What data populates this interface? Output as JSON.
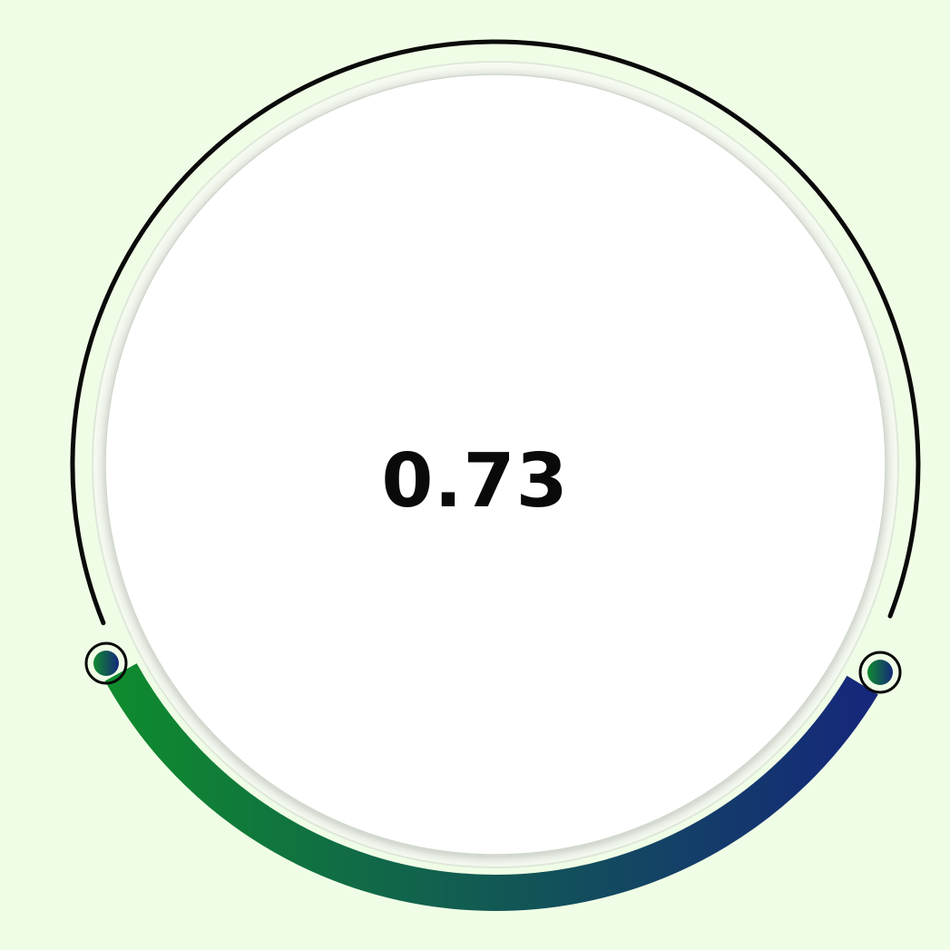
{
  "knob": {
    "value": 0.73,
    "display_value": "0.73",
    "colors": {
      "background": "#f0fde6",
      "face": "#ffffff",
      "ring": "#0a0a0a",
      "arc_start": "#0f8a2e",
      "arc_end": "#15287a"
    }
  }
}
